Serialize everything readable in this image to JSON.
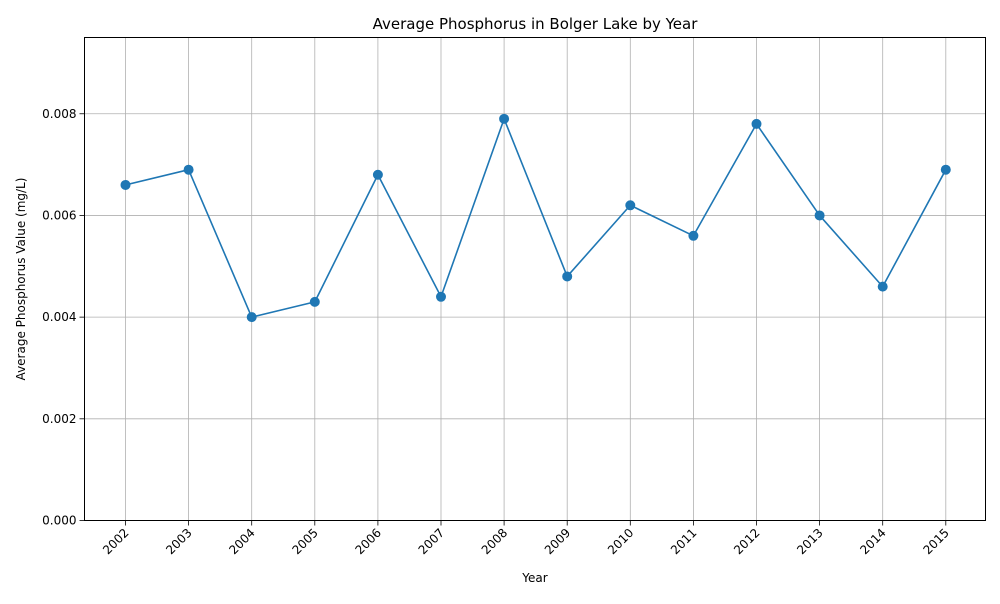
{
  "chart_data": {
    "type": "line",
    "title": "Average Phosphorus in Bolger Lake by Year",
    "xlabel": "Year",
    "ylabel": "Average Phosphorus Value (mg/L)",
    "categories": [
      "2002",
      "2003",
      "2004",
      "2005",
      "2006",
      "2007",
      "2008",
      "2009",
      "2010",
      "2011",
      "2012",
      "2013",
      "2014",
      "2015"
    ],
    "series": [
      {
        "values": [
          0.0066,
          0.0069,
          0.004,
          0.0043,
          0.0068,
          0.0044,
          0.0079,
          0.0048,
          0.0062,
          0.0056,
          0.0078,
          0.006,
          0.0046,
          0.0069
        ],
        "color": "#1f77b4",
        "marker": "circle"
      }
    ],
    "ylim": [
      0,
      0.0095
    ],
    "yticks": [
      "0.000",
      "0.002",
      "0.004",
      "0.006",
      "0.008"
    ],
    "grid": true,
    "x_tick_rotation": "45 degrees"
  }
}
